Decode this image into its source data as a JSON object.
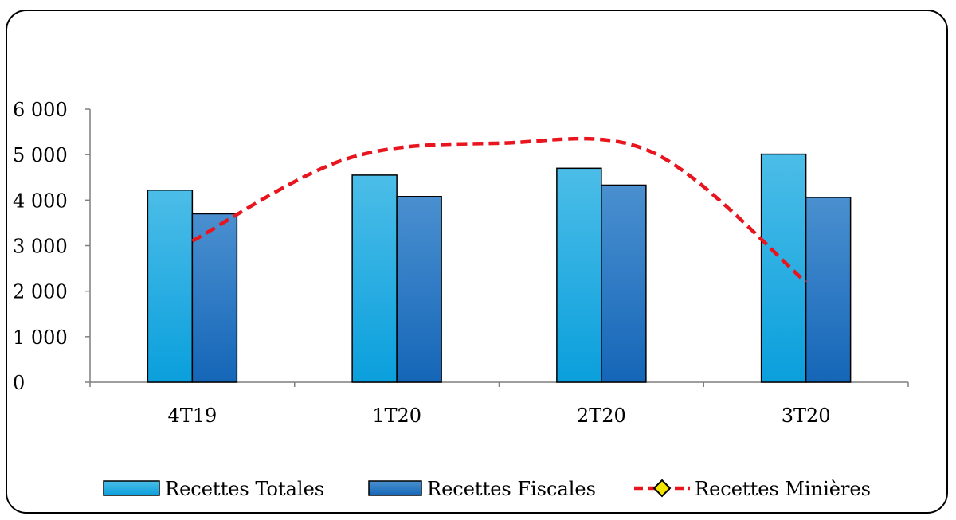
{
  "chart_data": {
    "type": "bar",
    "categories": [
      "4T19",
      "1T20",
      "2T20",
      "3T20"
    ],
    "y_ticks": [
      "0",
      "1 000",
      "2 000",
      "3 000",
      "4 000",
      "5 000",
      "6 000"
    ],
    "ylim": [
      0,
      6000
    ],
    "grid": false,
    "legend_position": "bottom",
    "series": [
      {
        "name": "Recettes Totales",
        "kind": "bar",
        "values": [
          4220,
          4550,
          4700,
          5010
        ],
        "color_light": "#4cbde8",
        "color_dark": "#0a9fdc"
      },
      {
        "name": "Recettes Fiscales",
        "kind": "bar",
        "values": [
          3700,
          4080,
          4330,
          4060
        ],
        "color_light": "#4a90d0",
        "color_dark": "#1566b8"
      },
      {
        "name": "Recettes Minières",
        "kind": "line",
        "style": "dashed",
        "marker": "diamond",
        "values": [
          3100,
          null,
          null,
          2200
        ],
        "curve_values": [
          3100,
          4900,
          5250,
          5050,
          2200
        ],
        "color": "#e8141e",
        "marker_fill": "#f2e600"
      }
    ]
  }
}
